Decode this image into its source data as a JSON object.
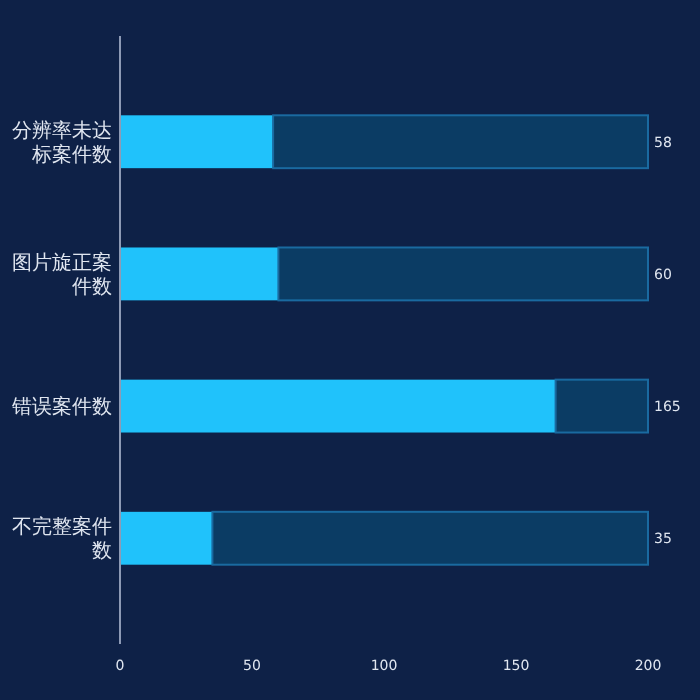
{
  "chart_data": {
    "type": "bar",
    "orientation": "horizontal",
    "stacked": true,
    "categories": [
      "分辨率未达标案件数",
      "图片旋正案件数",
      "错误案件数",
      "不完整案件数"
    ],
    "series": [
      {
        "color": "#20c2fb",
        "values": [
          58,
          60,
          165,
          35
        ]
      },
      {
        "color": "#0b3c64",
        "values": [
          142,
          140,
          35,
          165
        ]
      }
    ],
    "annotations": [
      "58",
      "60",
      "165",
      "35"
    ],
    "xlim": [
      0,
      200
    ],
    "xticks": [
      0,
      50,
      100,
      150,
      200
    ]
  }
}
